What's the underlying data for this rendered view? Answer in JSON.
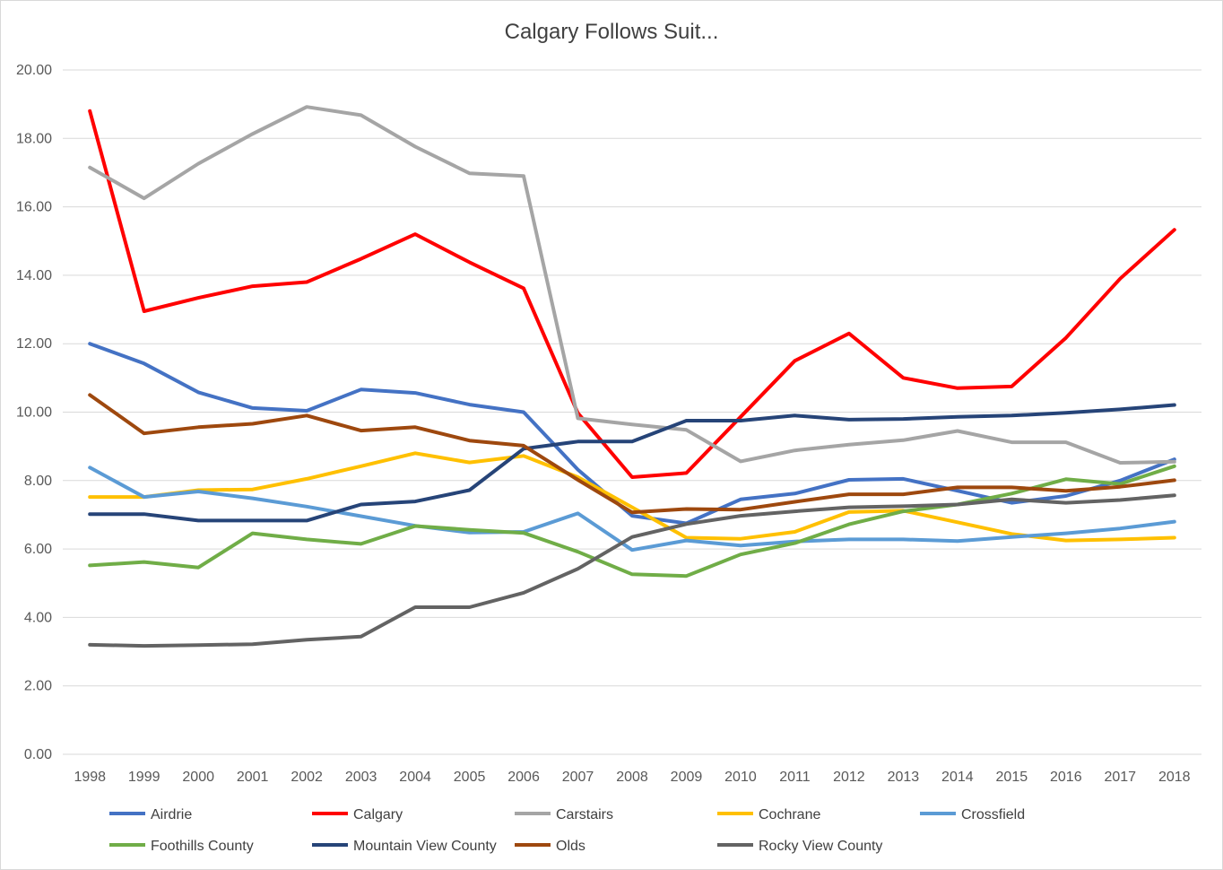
{
  "chart_data": {
    "type": "line",
    "title": "Calgary Follows Suit...",
    "xlabel": "",
    "ylabel": "",
    "x": [
      "1998",
      "1999",
      "2000",
      "2001",
      "2002",
      "2003",
      "2004",
      "2005",
      "2006",
      "2007",
      "2008",
      "2009",
      "2010",
      "2011",
      "2012",
      "2013",
      "2014",
      "2015",
      "2016",
      "2017",
      "2018"
    ],
    "ylim": [
      0,
      20
    ],
    "yticks": [
      "0.00",
      "2.00",
      "4.00",
      "6.00",
      "8.00",
      "10.00",
      "12.00",
      "14.00",
      "16.00",
      "18.00",
      "20.00"
    ],
    "grid": true,
    "legend_position": "bottom",
    "series": [
      {
        "name": "Airdrie",
        "color": "#4472c4",
        "values": [
          12.0,
          11.42,
          10.58,
          10.12,
          10.04,
          10.66,
          10.56,
          10.22,
          10.0,
          8.32,
          6.97,
          6.75,
          7.45,
          7.62,
          8.02,
          8.05,
          7.7,
          7.35,
          7.55,
          8.0,
          8.62
        ]
      },
      {
        "name": "Calgary",
        "color": "#ff0000",
        "values": [
          18.8,
          12.95,
          13.34,
          13.68,
          13.8,
          14.48,
          15.2,
          14.38,
          13.62,
          9.97,
          8.1,
          8.22,
          9.86,
          11.5,
          12.3,
          11.0,
          10.7,
          10.75,
          12.17,
          13.9,
          15.33
        ]
      },
      {
        "name": "Carstairs",
        "color": "#a5a5a5",
        "values": [
          17.15,
          16.25,
          17.26,
          18.13,
          18.92,
          18.68,
          17.76,
          16.98,
          16.9,
          9.82,
          9.64,
          9.48,
          8.56,
          8.88,
          9.05,
          9.18,
          9.45,
          9.12,
          9.12,
          8.52,
          8.55
        ]
      },
      {
        "name": "Cochrane",
        "color": "#ffc000",
        "values": [
          7.52,
          7.52,
          7.72,
          7.74,
          8.05,
          8.42,
          8.8,
          8.53,
          8.72,
          8.1,
          7.22,
          6.33,
          6.3,
          6.5,
          7.08,
          7.12,
          6.78,
          6.44,
          6.25,
          6.28,
          6.33
        ]
      },
      {
        "name": "Crossfield",
        "color": "#5b9bd5",
        "values": [
          8.38,
          7.52,
          7.68,
          7.48,
          7.24,
          6.96,
          6.68,
          6.48,
          6.5,
          7.04,
          5.97,
          6.25,
          6.1,
          6.22,
          6.28,
          6.28,
          6.23,
          6.35,
          6.46,
          6.6,
          6.8
        ]
      },
      {
        "name": "Foothills County",
        "color": "#70ad47",
        "values": [
          5.52,
          5.62,
          5.46,
          6.46,
          6.28,
          6.15,
          6.67,
          6.56,
          6.47,
          5.92,
          5.26,
          5.21,
          5.84,
          6.17,
          6.72,
          7.1,
          7.3,
          7.62,
          8.04,
          7.9,
          8.42
        ]
      },
      {
        "name": "Mountain View County",
        "color": "#264478",
        "values": [
          7.02,
          7.02,
          6.83,
          6.83,
          6.83,
          7.3,
          7.39,
          7.72,
          8.93,
          9.14,
          9.14,
          9.75,
          9.75,
          9.9,
          9.78,
          9.8,
          9.86,
          9.9,
          9.98,
          10.08,
          10.21
        ]
      },
      {
        "name": "Olds",
        "color": "#9e480e",
        "values": [
          10.5,
          9.38,
          9.56,
          9.66,
          9.9,
          9.46,
          9.56,
          9.17,
          9.02,
          8.02,
          7.07,
          7.17,
          7.15,
          7.38,
          7.6,
          7.6,
          7.8,
          7.8,
          7.7,
          7.82,
          8.01
        ]
      },
      {
        "name": "Rocky View County",
        "color": "#636363",
        "values": [
          3.2,
          3.17,
          3.19,
          3.22,
          3.35,
          3.44,
          4.3,
          4.3,
          4.72,
          5.42,
          6.35,
          6.73,
          6.97,
          7.1,
          7.22,
          7.25,
          7.3,
          7.45,
          7.35,
          7.43,
          7.57
        ]
      }
    ]
  }
}
